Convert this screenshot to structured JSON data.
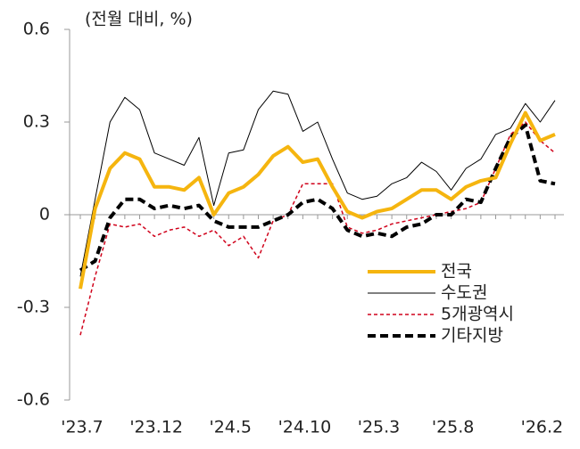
{
  "chart_data": {
    "type": "line",
    "y_label": "(전월 대비, %)",
    "categories": [
      "'23.7",
      null,
      null,
      null,
      null,
      "'23.12",
      null,
      null,
      null,
      null,
      "'24.5",
      null,
      null,
      null,
      null,
      "'24.10",
      null,
      null,
      null,
      null,
      "'25.3",
      null,
      null,
      null,
      null,
      "'25.8",
      null,
      null,
      null,
      null,
      null,
      "'26.2",
      null
    ],
    "ylim": [
      -0.6,
      0.6
    ],
    "yticks": [
      0.6,
      0.3,
      0,
      -0.3,
      -0.6
    ],
    "legend": "lower right",
    "series": [
      {
        "name": "전국",
        "color": "#f5b50f",
        "style": "solid",
        "width": 4,
        "values": [
          -0.24,
          0.02,
          0.15,
          0.2,
          0.18,
          0.09,
          0.09,
          0.08,
          0.12,
          0.0,
          0.07,
          0.09,
          0.13,
          0.19,
          0.22,
          0.17,
          0.18,
          0.09,
          0.01,
          -0.01,
          0.01,
          0.02,
          0.05,
          0.08,
          0.08,
          0.05,
          0.09,
          0.11,
          0.12,
          0.23,
          0.33,
          0.24,
          0.26
        ]
      },
      {
        "name": "수도권",
        "color": "#000000",
        "style": "solid",
        "width": 1,
        "values": [
          -0.2,
          0.05,
          0.3,
          0.38,
          0.34,
          0.2,
          0.18,
          0.16,
          0.25,
          0.03,
          0.2,
          0.21,
          0.34,
          0.4,
          0.39,
          0.27,
          0.3,
          0.18,
          0.07,
          0.05,
          0.06,
          0.1,
          0.12,
          0.17,
          0.14,
          0.08,
          0.15,
          0.18,
          0.26,
          0.28,
          0.36,
          0.3,
          0.37
        ]
      },
      {
        "name": "5개광역시",
        "color": "#d0021b",
        "style": "dashed",
        "width": 1.5,
        "values": [
          -0.39,
          -0.2,
          -0.03,
          -0.04,
          -0.03,
          -0.07,
          -0.05,
          -0.04,
          -0.07,
          -0.05,
          -0.1,
          -0.07,
          -0.14,
          -0.02,
          0.0,
          0.1,
          0.1,
          0.1,
          -0.04,
          -0.06,
          -0.05,
          -0.03,
          -0.02,
          -0.01,
          0.0,
          0.01,
          0.02,
          0.04,
          0.15,
          0.26,
          0.3,
          0.24,
          0.2
        ]
      },
      {
        "name": "기타지방",
        "color": "#000000",
        "style": "dashed",
        "width": 4,
        "values": [
          -0.18,
          -0.15,
          -0.01,
          0.05,
          0.05,
          0.02,
          0.03,
          0.02,
          0.03,
          -0.02,
          -0.04,
          -0.04,
          -0.04,
          -0.02,
          0.0,
          0.04,
          0.05,
          0.02,
          -0.05,
          -0.07,
          -0.06,
          -0.07,
          -0.04,
          -0.03,
          0.0,
          0.0,
          0.05,
          0.04,
          0.15,
          0.25,
          0.29,
          0.11,
          0.1
        ]
      }
    ]
  }
}
